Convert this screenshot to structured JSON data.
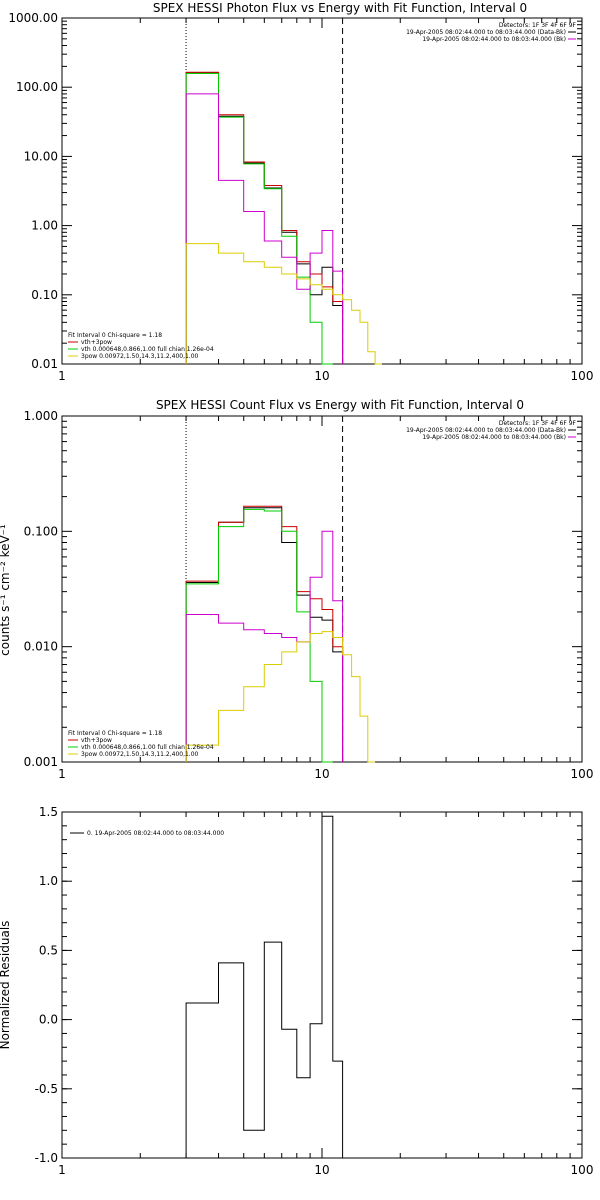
{
  "chart_data": [
    {
      "id": "photon",
      "type": "line",
      "title": "SPEX HESSI Photon Flux vs Energy with Fit Function, Interval 0",
      "xscale": "log",
      "yscale": "log",
      "xlim": [
        1,
        100
      ],
      "ylim": [
        0.01,
        1000
      ],
      "xticks": [
        1,
        10,
        100
      ],
      "xtick_labels": [
        "1",
        "10",
        "100"
      ],
      "yticks": [
        0.01,
        0.1,
        1,
        10,
        100,
        1000
      ],
      "ytick_labels": [
        "0.01",
        "0.10",
        "1.00",
        "10.00",
        "100.00",
        "1000.00"
      ],
      "vlines": [
        {
          "x": 3.0,
          "style": "dotted"
        },
        {
          "x": 12.0,
          "style": "dashed"
        }
      ],
      "legend_top": [
        {
          "text": "Detectors: 1F 3F 4F 6F 9F",
          "color": ""
        },
        {
          "text": "19-Apr-2005 08:02:44.000 to 08:03:44.000 (Data-Bk)",
          "color": "#000000"
        },
        {
          "text": "19-Apr-2005 08:02:44.000 to 08:03:44.000 (Bk)",
          "color": "#cc00cc"
        }
      ],
      "legend_bottom": [
        {
          "text": "Fit Interval 0   Chi-square = 1.18",
          "color": ""
        },
        {
          "text": "vth+3pow",
          "color": "#cc0000"
        },
        {
          "text": "vth 0.000648,0.866,1.00  full chian 1.26e-04",
          "color": "#00cc00"
        },
        {
          "text": "3pow 0.00972,1.50,14.3,11.2,400,1.00",
          "color": "#ddcc00"
        }
      ],
      "edges": [
        3,
        4,
        5,
        6,
        7,
        8,
        9,
        10,
        11,
        12,
        13,
        14,
        15,
        16,
        17
      ],
      "series": [
        {
          "key": "data",
          "color": "#000000",
          "values": [
            160,
            38,
            8,
            3.5,
            0.8,
            0.28,
            0.1,
            0.25,
            0.07,
            null,
            null,
            null,
            null,
            null
          ]
        },
        {
          "key": "total",
          "color": "#cc0000",
          "values": [
            165,
            40,
            8.3,
            3.8,
            0.85,
            0.3,
            0.2,
            0.13,
            0.08,
            null,
            null,
            null,
            null,
            null
          ]
        },
        {
          "key": "thermal",
          "color": "#00cc00",
          "values": [
            158,
            37,
            7.8,
            3.4,
            0.7,
            0.18,
            0.04,
            0.01,
            null,
            null,
            null,
            null,
            null,
            null
          ]
        },
        {
          "key": "background",
          "color": "#cc00cc",
          "values": [
            80,
            4.5,
            1.6,
            0.6,
            0.35,
            0.12,
            0.4,
            0.85,
            0.22,
            null,
            null,
            null,
            null,
            null
          ]
        },
        {
          "key": "powerlaw",
          "color": "#ddcc00",
          "values": [
            0.55,
            0.4,
            0.3,
            0.25,
            0.2,
            0.17,
            0.14,
            0.12,
            0.1,
            0.085,
            0.06,
            0.04,
            0.015,
            0.01
          ]
        }
      ]
    },
    {
      "id": "count",
      "type": "line",
      "title": "SPEX HESSI Count Flux vs Energy with Fit Function, Interval 0",
      "ylabel": "counts s⁻¹ cm⁻² keV⁻¹",
      "xscale": "log",
      "yscale": "log",
      "xlim": [
        1,
        100
      ],
      "ylim": [
        0.001,
        1
      ],
      "xticks": [
        1,
        10,
        100
      ],
      "xtick_labels": [
        "1",
        "10",
        "100"
      ],
      "yticks": [
        0.001,
        0.01,
        0.1,
        1
      ],
      "ytick_labels": [
        "0.001",
        "0.010",
        "0.100",
        "1.000"
      ],
      "vlines": [
        {
          "x": 3.0,
          "style": "dotted"
        },
        {
          "x": 12.0,
          "style": "dashed"
        }
      ],
      "legend_top": [
        {
          "text": "Detectors: 1F 3F 4F 6F 9F",
          "color": ""
        },
        {
          "text": "19-Apr-2005 08:02:44.000 to 08:03:44.000 (Data-Bk)",
          "color": "#000000"
        },
        {
          "text": "19-Apr-2005 08:02:44.000 to 08:03:44.000 (Bk)",
          "color": "#cc00cc"
        }
      ],
      "legend_bottom": [
        {
          "text": "Fit Interval 0   Chi-square = 1.18",
          "color": ""
        },
        {
          "text": "vth+3pow",
          "color": "#cc0000"
        },
        {
          "text": "vth 0.000648,0.866,1.00  full chian 1.26e-04",
          "color": "#00cc00"
        },
        {
          "text": "3pow 0.00972,1.50,14.3,11.2,400,1.00",
          "color": "#ddcc00"
        }
      ],
      "edges": [
        3,
        4,
        5,
        6,
        7,
        8,
        9,
        10,
        11,
        12,
        13,
        14,
        15,
        16,
        17
      ],
      "series": [
        {
          "key": "data",
          "color": "#000000",
          "values": [
            0.036,
            0.12,
            0.16,
            0.16,
            0.08,
            0.028,
            0.018,
            0.017,
            0.009,
            null,
            null,
            null,
            null,
            null
          ]
        },
        {
          "key": "total",
          "color": "#cc0000",
          "values": [
            0.037,
            0.12,
            0.165,
            0.165,
            0.11,
            0.03,
            0.026,
            0.021,
            0.01,
            null,
            null,
            null,
            null,
            null
          ]
        },
        {
          "key": "thermal",
          "color": "#00cc00",
          "values": [
            0.035,
            0.11,
            0.155,
            0.15,
            0.1,
            0.02,
            0.005,
            0.001,
            null,
            null,
            null,
            null,
            null,
            null
          ]
        },
        {
          "key": "background",
          "color": "#cc00cc",
          "values": [
            0.019,
            0.016,
            0.014,
            0.013,
            0.012,
            0.011,
            0.04,
            0.1,
            0.025,
            null,
            null,
            null,
            null,
            null
          ]
        },
        {
          "key": "powerlaw",
          "color": "#ddcc00",
          "values": [
            0.0014,
            0.0028,
            0.0045,
            0.007,
            0.009,
            0.011,
            0.013,
            0.0135,
            0.012,
            0.0085,
            0.0055,
            0.0025,
            0.001,
            null
          ]
        }
      ]
    },
    {
      "id": "residuals",
      "type": "line",
      "ylabel": "Normalized Residuals",
      "xscale": "log",
      "yscale": "linear",
      "xlim": [
        1,
        100
      ],
      "ylim": [
        -1.0,
        1.5
      ],
      "xticks": [
        1,
        10,
        100
      ],
      "xtick_labels": [
        "1",
        "10",
        "100"
      ],
      "yticks": [
        -1.0,
        -0.5,
        0.0,
        0.5,
        1.0,
        1.5
      ],
      "ytick_labels": [
        "-1.0",
        "-0.5",
        "0.0",
        "0.5",
        "1.0",
        "1.5"
      ],
      "legend_top_left": {
        "text": "0. 19-Apr-2005 08:02:44.000 to 08:03:44.000",
        "color": "#000000"
      },
      "edges": [
        3,
        4,
        5,
        6,
        7,
        8,
        9,
        10,
        11,
        12
      ],
      "series": [
        {
          "key": "residuals",
          "color": "#000000",
          "values": [
            0.12,
            0.41,
            -0.8,
            0.56,
            -0.07,
            -0.42,
            -0.03,
            1.47,
            -0.3
          ]
        }
      ],
      "baseline": -1.0
    }
  ]
}
